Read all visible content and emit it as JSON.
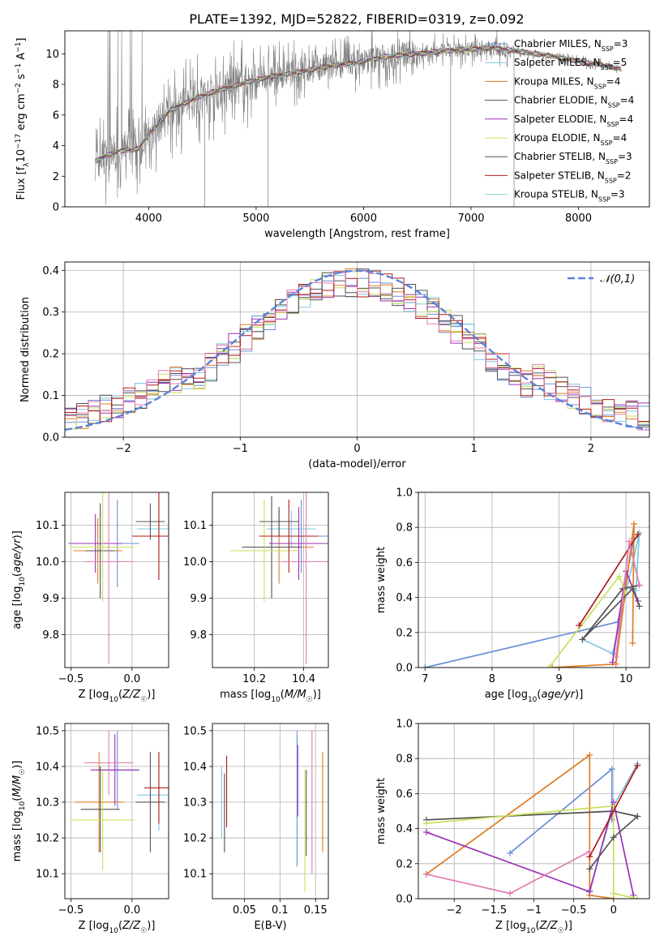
{
  "figure": {
    "title": "PLATE=1392, MJD=52822, FIBERID=0319, z=0.092"
  },
  "colors": {
    "Chabrier MILES": "#6a8fd8",
    "Salpeter MILES": "#7ec8e3",
    "Kroupa MILES": "#e07b20",
    "Chabrier ELODIE": "#4f4f4f",
    "Salpeter ELODIE": "#9b30b5",
    "Kroupa ELODIE": "#c8e05a",
    "Chabrier STELIB": "#555555",
    "Salpeter STELIB": "#b01a1a",
    "Kroupa STELIB": "#7fdcdc",
    "gaussian": "#5b84d8"
  },
  "chart_data": [
    {
      "id": "spectrum",
      "type": "line",
      "xlabel": "wavelength [Angstrom, rest frame]",
      "ylabel": "Flux [f_λ 10^-17 erg cm^-2 s^-1 A^-1]",
      "xlim": [
        3220,
        8660
      ],
      "ylim": [
        0,
        11.5
      ],
      "xticks": [
        4000,
        5000,
        6000,
        7000,
        8000
      ],
      "yticks": [
        0,
        2,
        4,
        6,
        8,
        10
      ],
      "grid": false,
      "legend_position": "top-right",
      "legend": [
        {
          "label": "Chabrier MILES, N_SSP=3",
          "base": "Chabrier MILES, N",
          "sub": "SSP",
          "tail": "=3"
        },
        {
          "label": "Salpeter MILES, N_SSP=5",
          "base": "Salpeter MILES, N",
          "sub": "SSP",
          "tail": "=5"
        },
        {
          "label": "Kroupa MILES, N_SSP=4",
          "base": "Kroupa MILES, N",
          "sub": "SSP",
          "tail": "=4"
        },
        {
          "label": "Chabrier ELODIE, N_SSP=4",
          "base": "Chabrier ELODIE, N",
          "sub": "SSP",
          "tail": "=4"
        },
        {
          "label": "Salpeter ELODIE, N_SSP=4",
          "base": "Salpeter ELODIE, N",
          "sub": "SSP",
          "tail": "=4"
        },
        {
          "label": "Kroupa ELODIE, N_SSP=4",
          "base": "Kroupa ELODIE, N",
          "sub": "SSP",
          "tail": "=4"
        },
        {
          "label": "Chabrier STELIB, N_SSP=3",
          "base": "Chabrier STELIB, N",
          "sub": "SSP",
          "tail": "=3"
        },
        {
          "label": "Salpeter STELIB, N_SSP=2",
          "base": "Salpeter STELIB, N",
          "sub": "SSP",
          "tail": "=2"
        },
        {
          "label": "Kroupa STELIB, N_SSP=3",
          "base": "Kroupa STELIB, N",
          "sub": "SSP",
          "tail": "=3"
        }
      ],
      "observed_color": "#808080",
      "continuum": {
        "x": [
          3500,
          3700,
          3900,
          4000,
          4200,
          4400,
          4600,
          4800,
          5000,
          5200,
          5400,
          5600,
          5800,
          6000,
          6200,
          6500,
          6800,
          7000,
          7200,
          7400,
          7600,
          7800,
          8000,
          8200,
          8400
        ],
        "y": [
          3.0,
          3.6,
          3.8,
          4.7,
          6.3,
          7.0,
          7.5,
          7.9,
          8.3,
          8.6,
          8.8,
          9.1,
          9.3,
          9.5,
          9.8,
          10.0,
          10.2,
          10.3,
          10.4,
          10.2,
          10.0,
          9.8,
          9.5,
          9.3,
          9.0
        ]
      }
    },
    {
      "id": "residuals",
      "type": "line",
      "xlabel": "(data-model)/error",
      "ylabel": "Normed distribution",
      "xlim": [
        -2.5,
        2.5
      ],
      "ylim": [
        0,
        0.42
      ],
      "xticks": [
        -2,
        -1,
        0,
        1,
        2
      ],
      "yticks": [
        0.0,
        0.1,
        0.2,
        0.3,
        0.4
      ],
      "grid": true,
      "legend_position": "top-right",
      "legend_label": "𝒩(0,1)",
      "gaussian": {
        "mean": 0,
        "sigma": 1
      },
      "bin_width": 0.1
    },
    {
      "id": "age-vs-Z",
      "type": "scatter",
      "xlabel": "Z [log10(Z/Z☉)]",
      "ylabel": "age [log10(age/yr)]",
      "xlim": [
        -0.55,
        0.3
      ],
      "ylim": [
        9.71,
        10.19
      ],
      "xticks": [
        -0.5,
        0.0
      ],
      "yticks": [
        9.8,
        9.9,
        10.0,
        10.1
      ],
      "grid": true,
      "points": [
        {
          "s": "Chabrier MILES",
          "x": -0.12,
          "y": 10.05,
          "xe": 0.18,
          "ye": 0.12
        },
        {
          "s": "Salpeter MILES",
          "x": 0.22,
          "y": 10.09,
          "xe": 0.18,
          "ye": 0.04
        },
        {
          "s": "Kroupa MILES",
          "x": -0.28,
          "y": 10.03,
          "xe": 0.2,
          "ye": 0.09
        },
        {
          "s": "Chabrier ELODIE",
          "x": -0.26,
          "y": 10.03,
          "xe": 0.12,
          "ye": 0.13
        },
        {
          "s": "Salpeter ELODIE",
          "x": -0.3,
          "y": 10.05,
          "xe": 0.22,
          "ye": 0.08
        },
        {
          "s": "Kroupa ELODIE",
          "x": -0.24,
          "y": 10.04,
          "xe": 0.26,
          "ye": 0.15
        },
        {
          "s": "Chabrier STELIB",
          "x": 0.15,
          "y": 10.11,
          "xe": 0.12,
          "ye": 0.05
        },
        {
          "s": "Salpeter STELIB",
          "x": 0.22,
          "y": 10.07,
          "xe": 0.22,
          "ye": 0.12
        },
        {
          "s": "Salpeter MILES",
          "x": -0.19,
          "y": 10.0,
          "xe": 0.2,
          "ye": 0.28,
          "c": "#e07bb0"
        }
      ]
    },
    {
      "id": "age-vs-mass",
      "type": "scatter",
      "xlabel": "mass [log10(M/M☉)]",
      "ylabel": "",
      "xlim": [
        10.03,
        10.5
      ],
      "ylim": [
        9.71,
        10.19
      ],
      "xticks": [
        10.2,
        10.4
      ],
      "yticks": [
        9.8,
        9.9,
        10.0,
        10.1
      ],
      "grid": true,
      "points": [
        {
          "s": "Chabrier MILES",
          "x": 10.39,
          "y": 10.07,
          "xe": 0.11,
          "ye": 0.1
        },
        {
          "s": "Salpeter MILES",
          "x": 10.35,
          "y": 10.09,
          "xe": 0.1,
          "ye": 0.05
        },
        {
          "s": "Kroupa MILES",
          "x": 10.3,
          "y": 10.04,
          "xe": 0.14,
          "ye": 0.1
        },
        {
          "s": "Chabrier ELODIE",
          "x": 10.27,
          "y": 10.04,
          "xe": 0.12,
          "ye": 0.14
        },
        {
          "s": "Salpeter ELODIE",
          "x": 10.38,
          "y": 10.05,
          "xe": 0.12,
          "ye": 0.1
        },
        {
          "s": "Kroupa ELODIE",
          "x": 10.24,
          "y": 10.03,
          "xe": 0.14,
          "ye": 0.14
        },
        {
          "s": "Chabrier STELIB",
          "x": 10.3,
          "y": 10.11,
          "xe": 0.08,
          "ye": 0.04
        },
        {
          "s": "Salpeter STELIB",
          "x": 10.34,
          "y": 10.07,
          "xe": 0.12,
          "ye": 0.1
        },
        {
          "s": "Salpeter MILES",
          "x": 10.41,
          "y": 10.0,
          "xe": 0.1,
          "ye": 0.28,
          "c": "#e07bb0"
        }
      ]
    },
    {
      "id": "weight-vs-age",
      "type": "line",
      "xlabel": "age [log10(age/yr)]",
      "ylabel": "mass weight",
      "xlim": [
        6.9,
        10.35
      ],
      "ylim": [
        0,
        1.0
      ],
      "xticks": [
        7,
        8,
        9,
        10
      ],
      "yticks": [
        0.0,
        0.2,
        0.4,
        0.6,
        0.8,
        1.0
      ],
      "grid": true,
      "series": [
        {
          "s": "Chabrier MILES",
          "x": [
            7.0,
            9.88,
            10.12
          ],
          "y": [
            0.0,
            0.26,
            0.74
          ]
        },
        {
          "s": "Salpeter MILES",
          "x": [
            9.35,
            9.8,
            10.2,
            10.15
          ],
          "y": [
            0.16,
            0.08,
            0.77,
            0.44
          ]
        },
        {
          "s": "Kroupa MILES",
          "x": [
            8.9,
            9.85,
            10.12,
            10.1
          ],
          "y": [
            0.0,
            0.02,
            0.82,
            0.14
          ]
        },
        {
          "s": "Chabrier ELODIE",
          "x": [
            9.35,
            9.95,
            10.2
          ],
          "y": [
            0.16,
            0.45,
            0.47
          ]
        },
        {
          "s": "Salpeter ELODIE",
          "x": [
            9.8,
            10.0,
            10.18
          ],
          "y": [
            0.03,
            0.55,
            0.38
          ]
        },
        {
          "s": "Kroupa ELODIE",
          "x": [
            8.85,
            9.9,
            10.0
          ],
          "y": [
            0.0,
            0.52,
            0.42
          ]
        },
        {
          "s": "Chabrier STELIB",
          "x": [
            9.35,
            10.1,
            10.2
          ],
          "y": [
            0.16,
            0.45,
            0.35
          ]
        },
        {
          "s": "Salpeter STELIB",
          "x": [
            9.3,
            10.18
          ],
          "y": [
            0.24,
            0.76
          ]
        },
        {
          "s": "Kroupa STELIB",
          "x": [
            9.85,
            10.05,
            10.2
          ],
          "y": [
            0.06,
            0.72,
            0.47
          ],
          "c": "#e07bb0"
        }
      ]
    },
    {
      "id": "mass-vs-Z",
      "type": "scatter",
      "xlabel": "Z [log10(Z/Z☉)]",
      "ylabel": "mass [log10(M/M☉)]",
      "xlim": [
        -0.55,
        0.3
      ],
      "ylim": [
        10.03,
        10.52
      ],
      "xticks": [
        -0.5,
        0.0
      ],
      "yticks": [
        10.1,
        10.2,
        10.3,
        10.4,
        10.5
      ],
      "grid": true,
      "points": [
        {
          "s": "Chabrier MILES",
          "x": -0.12,
          "y": 10.39,
          "xe": 0.18,
          "ye": 0.11
        },
        {
          "s": "Salpeter MILES",
          "x": 0.22,
          "y": 10.32,
          "xe": 0.18,
          "ye": 0.1
        },
        {
          "s": "Kroupa MILES",
          "x": -0.27,
          "y": 10.3,
          "xe": 0.2,
          "ye": 0.14
        },
        {
          "s": "Chabrier ELODIE",
          "x": -0.26,
          "y": 10.28,
          "xe": 0.16,
          "ye": 0.12
        },
        {
          "s": "Salpeter ELODIE",
          "x": -0.14,
          "y": 10.39,
          "xe": 0.2,
          "ye": 0.1
        },
        {
          "s": "Kroupa ELODIE",
          "x": -0.24,
          "y": 10.25,
          "xe": 0.26,
          "ye": 0.14
        },
        {
          "s": "Chabrier STELIB",
          "x": 0.15,
          "y": 10.3,
          "xe": 0.12,
          "ye": 0.14
        },
        {
          "s": "Salpeter STELIB",
          "x": 0.22,
          "y": 10.34,
          "xe": 0.12,
          "ye": 0.1
        },
        {
          "s": "Salpeter MILES",
          "x": -0.19,
          "y": 10.41,
          "xe": 0.2,
          "ye": 0.09,
          "c": "#e07bb0"
        }
      ]
    },
    {
      "id": "mass-vs-ebv",
      "type": "scatter",
      "xlabel": "E(B-V)",
      "ylabel": "",
      "xlim": [
        0.005,
        0.168
      ],
      "ylim": [
        10.03,
        10.52
      ],
      "xticks": [
        0.05,
        0.1,
        0.15
      ],
      "yticks": [
        10.1,
        10.2,
        10.3,
        10.4,
        10.5
      ],
      "grid": true,
      "points": [
        {
          "s": "Chabrier MILES",
          "x": 0.124,
          "y": 10.31,
          "xe": 0,
          "ye": 0.19
        },
        {
          "s": "Salpeter MILES",
          "x": 0.018,
          "y": 10.3,
          "xe": 0,
          "ye": 0.1
        },
        {
          "s": "Kroupa MILES",
          "x": 0.16,
          "y": 10.3,
          "xe": 0,
          "ye": 0.14
        },
        {
          "s": "Chabrier ELODIE",
          "x": 0.022,
          "y": 10.27,
          "xe": 0,
          "ye": 0.11
        },
        {
          "s": "Salpeter ELODIE",
          "x": 0.125,
          "y": 10.36,
          "xe": 0,
          "ye": 0.1
        },
        {
          "s": "Kroupa ELODIE",
          "x": 0.135,
          "y": 10.22,
          "xe": 0,
          "ye": 0.17
        },
        {
          "s": "Chabrier STELIB",
          "x": 0.137,
          "y": 10.27,
          "xe": 0,
          "ye": 0.12
        },
        {
          "s": "Salpeter STELIB",
          "x": 0.025,
          "y": 10.33,
          "xe": 0,
          "ye": 0.1
        },
        {
          "s": "Salpeter MILES",
          "x": 0.145,
          "y": 10.3,
          "xe": 0,
          "ye": 0.2,
          "c": "#e07bb0"
        }
      ]
    },
    {
      "id": "weight-vs-Z",
      "type": "line",
      "xlabel": "Z [log10(Z/Z☉)]",
      "ylabel": "mass weight",
      "xlim": [
        -2.45,
        0.45
      ],
      "ylim": [
        0,
        1.0
      ],
      "xticks": [
        -2.0,
        -1.5,
        -1.0,
        -0.5,
        0.0
      ],
      "yticks": [
        0.0,
        0.2,
        0.4,
        0.6,
        0.8,
        1.0
      ],
      "grid": true,
      "series": [
        {
          "s": "Chabrier MILES",
          "x": [
            -1.3,
            -0.02,
            -0.02
          ],
          "y": [
            0.26,
            0.74,
            0.45
          ]
        },
        {
          "s": "Salpeter MILES",
          "x": [
            -0.3,
            0.0,
            0.3
          ],
          "y": [
            0.05,
            0.53,
            0.77
          ]
        },
        {
          "s": "Kroupa MILES",
          "x": [
            -2.35,
            -0.3,
            -0.3,
            0.0
          ],
          "y": [
            0.14,
            0.82,
            0.02,
            0.0
          ]
        },
        {
          "s": "Chabrier ELODIE",
          "x": [
            -2.35,
            0.0,
            0.3
          ],
          "y": [
            0.45,
            0.5,
            0.47
          ]
        },
        {
          "s": "Salpeter ELODIE",
          "x": [
            -2.35,
            -0.3,
            0.0,
            0.25
          ],
          "y": [
            0.38,
            0.04,
            0.55,
            0.02
          ]
        },
        {
          "s": "Kroupa ELODIE",
          "x": [
            -2.35,
            0.0,
            0.0,
            0.3
          ],
          "y": [
            0.43,
            0.53,
            0.03,
            0.0
          ]
        },
        {
          "s": "Chabrier STELIB",
          "x": [
            -0.3,
            0.0,
            0.3
          ],
          "y": [
            0.17,
            0.35,
            0.47
          ]
        },
        {
          "s": "Salpeter STELIB",
          "x": [
            -0.3,
            0.3
          ],
          "y": [
            0.24,
            0.76
          ]
        },
        {
          "s": "Kroupa STELIB",
          "x": [
            -2.35,
            -1.3,
            -0.3
          ],
          "y": [
            0.14,
            0.03,
            0.27
          ],
          "c": "#e07bb0"
        }
      ]
    }
  ]
}
